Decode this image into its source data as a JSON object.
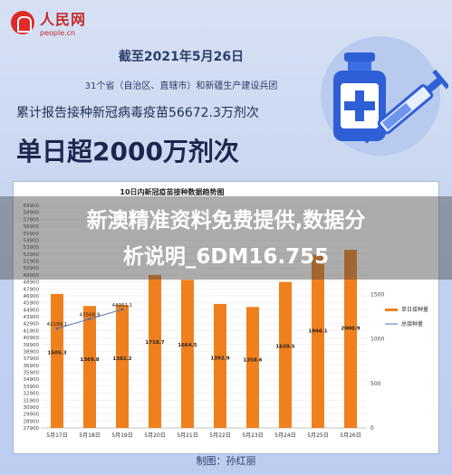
{
  "header": {
    "logo_text": "人民网",
    "logo_domain": "people.cn",
    "date_line": "截至2021年5月26日",
    "provinces_line": "31个省（自治区、直辖市）和新疆生产建设兵团",
    "cumulative_line": "累计报告接种新冠病毒疫苗56672.3万剂次",
    "headline": "单日超2000万剂次"
  },
  "overlay": {
    "line1": "新澳精准资料免费提供,数据分",
    "line2": "析说明_6DM16.755"
  },
  "footer": {
    "credit": "制图：孙红丽"
  },
  "chart_data": {
    "type": "bar",
    "title": "10日内新冠疫苗接种数据趋势图",
    "categories": [
      "5月17日",
      "5月18日",
      "5月19日",
      "5月20日",
      "5月21日",
      "5月22日",
      "5月23日",
      "5月24日",
      "5月25日",
      "5月26日"
    ],
    "series": [
      {
        "name": "单日接种量",
        "type": "bar",
        "axis": "right",
        "color": "#f0801e",
        "values": [
          1505.3,
          1369.8,
          1382.2,
          1718.7,
          1664.5,
          1392.9,
          1358.6,
          1639.5,
          1946.1,
          2000.9
        ]
      },
      {
        "name": "总接种量",
        "type": "line",
        "axis": "left",
        "color": "#4a6fb5",
        "values": [
          42199.1,
          43568.9,
          44951.1,
          null,
          null,
          null,
          null,
          null,
          null,
          null
        ],
        "labels": [
          "42199.1",
          "43568.9",
          "44951.1"
        ]
      }
    ],
    "left_axis": {
      "range": [
        27900,
        59900
      ],
      "ticks": [
        "27900",
        "28900",
        "29900",
        "30900",
        "31900",
        "32900",
        "33900",
        "34900",
        "35900",
        "36900",
        "37900",
        "38900",
        "39900",
        "40900",
        "41900",
        "42900",
        "43900",
        "44900",
        "45900",
        "46900",
        "47900",
        "48900",
        "49900",
        "50900",
        "51900",
        "52900",
        "53900",
        "54900",
        "55900",
        "56900",
        "57900",
        "58900",
        "59900"
      ]
    },
    "right_axis": {
      "range": [
        0,
        2500
      ],
      "ticks": [
        "0",
        "500",
        "1000",
        "1500"
      ]
    },
    "legend": "right"
  }
}
